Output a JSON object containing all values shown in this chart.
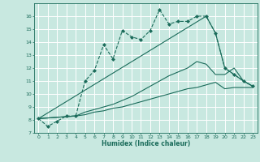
{
  "xlabel": "Humidex (Indice chaleur)",
  "bg_color": "#c8e8e0",
  "grid_color": "#ffffff",
  "line_color": "#1a6b5a",
  "xlim": [
    -0.5,
    23.5
  ],
  "ylim": [
    7,
    17
  ],
  "yticks": [
    7,
    8,
    9,
    10,
    11,
    12,
    13,
    14,
    15,
    16
  ],
  "xticks": [
    0,
    1,
    2,
    3,
    4,
    5,
    6,
    7,
    8,
    9,
    10,
    11,
    12,
    13,
    14,
    15,
    16,
    17,
    18,
    19,
    20,
    21,
    22,
    23
  ],
  "line1_x": [
    0,
    1,
    2,
    3,
    4,
    5,
    6,
    7,
    8,
    9,
    10,
    11,
    12,
    13,
    14,
    15,
    16,
    17,
    18,
    19,
    20,
    21,
    22,
    23
  ],
  "line1_y": [
    8.1,
    7.5,
    7.9,
    8.3,
    8.3,
    11.0,
    11.8,
    13.8,
    12.7,
    14.9,
    14.4,
    14.2,
    14.9,
    16.5,
    15.4,
    15.6,
    15.6,
    16.0,
    16.0,
    14.7,
    12.0,
    11.5,
    11.0,
    10.6
  ],
  "line2_x": [
    0,
    4,
    5,
    6,
    7,
    8,
    9,
    10,
    11,
    12,
    13,
    14,
    15,
    16,
    17,
    18,
    19,
    20,
    21,
    22,
    23
  ],
  "line2_y": [
    8.1,
    8.3,
    8.4,
    8.6,
    8.7,
    8.9,
    9.0,
    9.2,
    9.4,
    9.6,
    9.8,
    10.0,
    10.2,
    10.4,
    10.5,
    10.7,
    10.9,
    10.4,
    10.5,
    10.5,
    10.5
  ],
  "line3_x": [
    0,
    4,
    5,
    6,
    7,
    8,
    9,
    10,
    11,
    12,
    13,
    14,
    15,
    16,
    17,
    18,
    19,
    20,
    21,
    22,
    23
  ],
  "line3_y": [
    8.1,
    8.3,
    8.6,
    8.8,
    9.0,
    9.2,
    9.5,
    9.8,
    10.2,
    10.6,
    11.0,
    11.4,
    11.7,
    12.0,
    12.5,
    12.3,
    11.5,
    11.5,
    12.0,
    11.0,
    10.6
  ],
  "line4_x": [
    0,
    18,
    19,
    20,
    21,
    22,
    23
  ],
  "line4_y": [
    8.1,
    16.0,
    14.7,
    12.0,
    11.5,
    11.0,
    10.6
  ]
}
